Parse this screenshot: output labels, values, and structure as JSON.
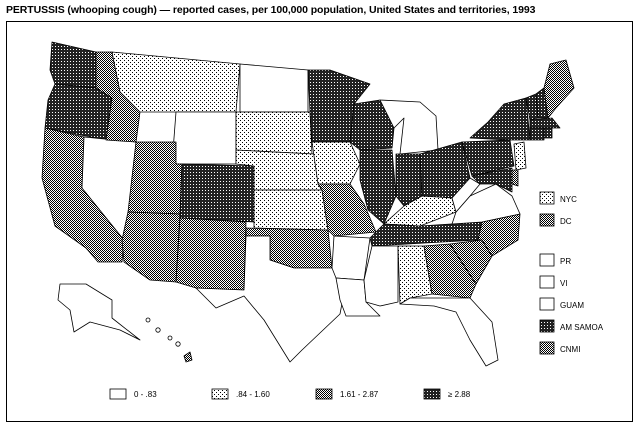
{
  "title": "PERTUSSIS (whooping cough) — reported cases, per 100,000 population, United States and territories, 1993",
  "map": {
    "legend": [
      {
        "label": "0 - .83",
        "pattern": "white"
      },
      {
        "label": ".84 - 1.60",
        "pattern": "dots"
      },
      {
        "label": "1.61 - 2.87",
        "pattern": "gray"
      },
      {
        "label": "≥ 2.88",
        "pattern": "dark"
      }
    ],
    "territories": [
      {
        "label": "NYC",
        "pattern": "dots"
      },
      {
        "label": "DC",
        "pattern": "gray"
      },
      {
        "label": "PR",
        "pattern": "white"
      },
      {
        "label": "VI",
        "pattern": "white"
      },
      {
        "label": "GUAM",
        "pattern": "white"
      },
      {
        "label": "AM SAMOA",
        "pattern": "dark"
      },
      {
        "label": "CNMI",
        "pattern": "gray"
      }
    ],
    "states": {
      "WA": "dark",
      "OR": "dark",
      "CA": "gray",
      "NV": "white",
      "ID": "gray",
      "MT": "dots",
      "WY": "white",
      "UT": "gray",
      "AZ": "gray",
      "CO": "dark",
      "NM": "gray",
      "ND": "white",
      "SD": "dots",
      "NE": "dots",
      "KS": "dots",
      "OK": "gray",
      "TX": "white",
      "MN": "dark",
      "IA": "dots",
      "MO": "gray",
      "AR": "white",
      "LA": "white",
      "WI": "dark",
      "IL": "dark",
      "MI": "white",
      "IN": "dark",
      "OH": "dark",
      "KY": "dots",
      "TN": "dark",
      "MS": "white",
      "AL": "dots",
      "GA": "gray",
      "FL": "white",
      "SC": "gray",
      "NC": "gray",
      "VA": "white",
      "WV": "white",
      "PA": "dark",
      "NY": "dark",
      "VT": "dark",
      "NH": "dark",
      "ME": "gray",
      "MA": "dark",
      "CT": "dark",
      "RI": "dark",
      "NJ": "dots",
      "DE": "gray",
      "MD": "dark",
      "AK": "white",
      "HI": "gray"
    }
  }
}
